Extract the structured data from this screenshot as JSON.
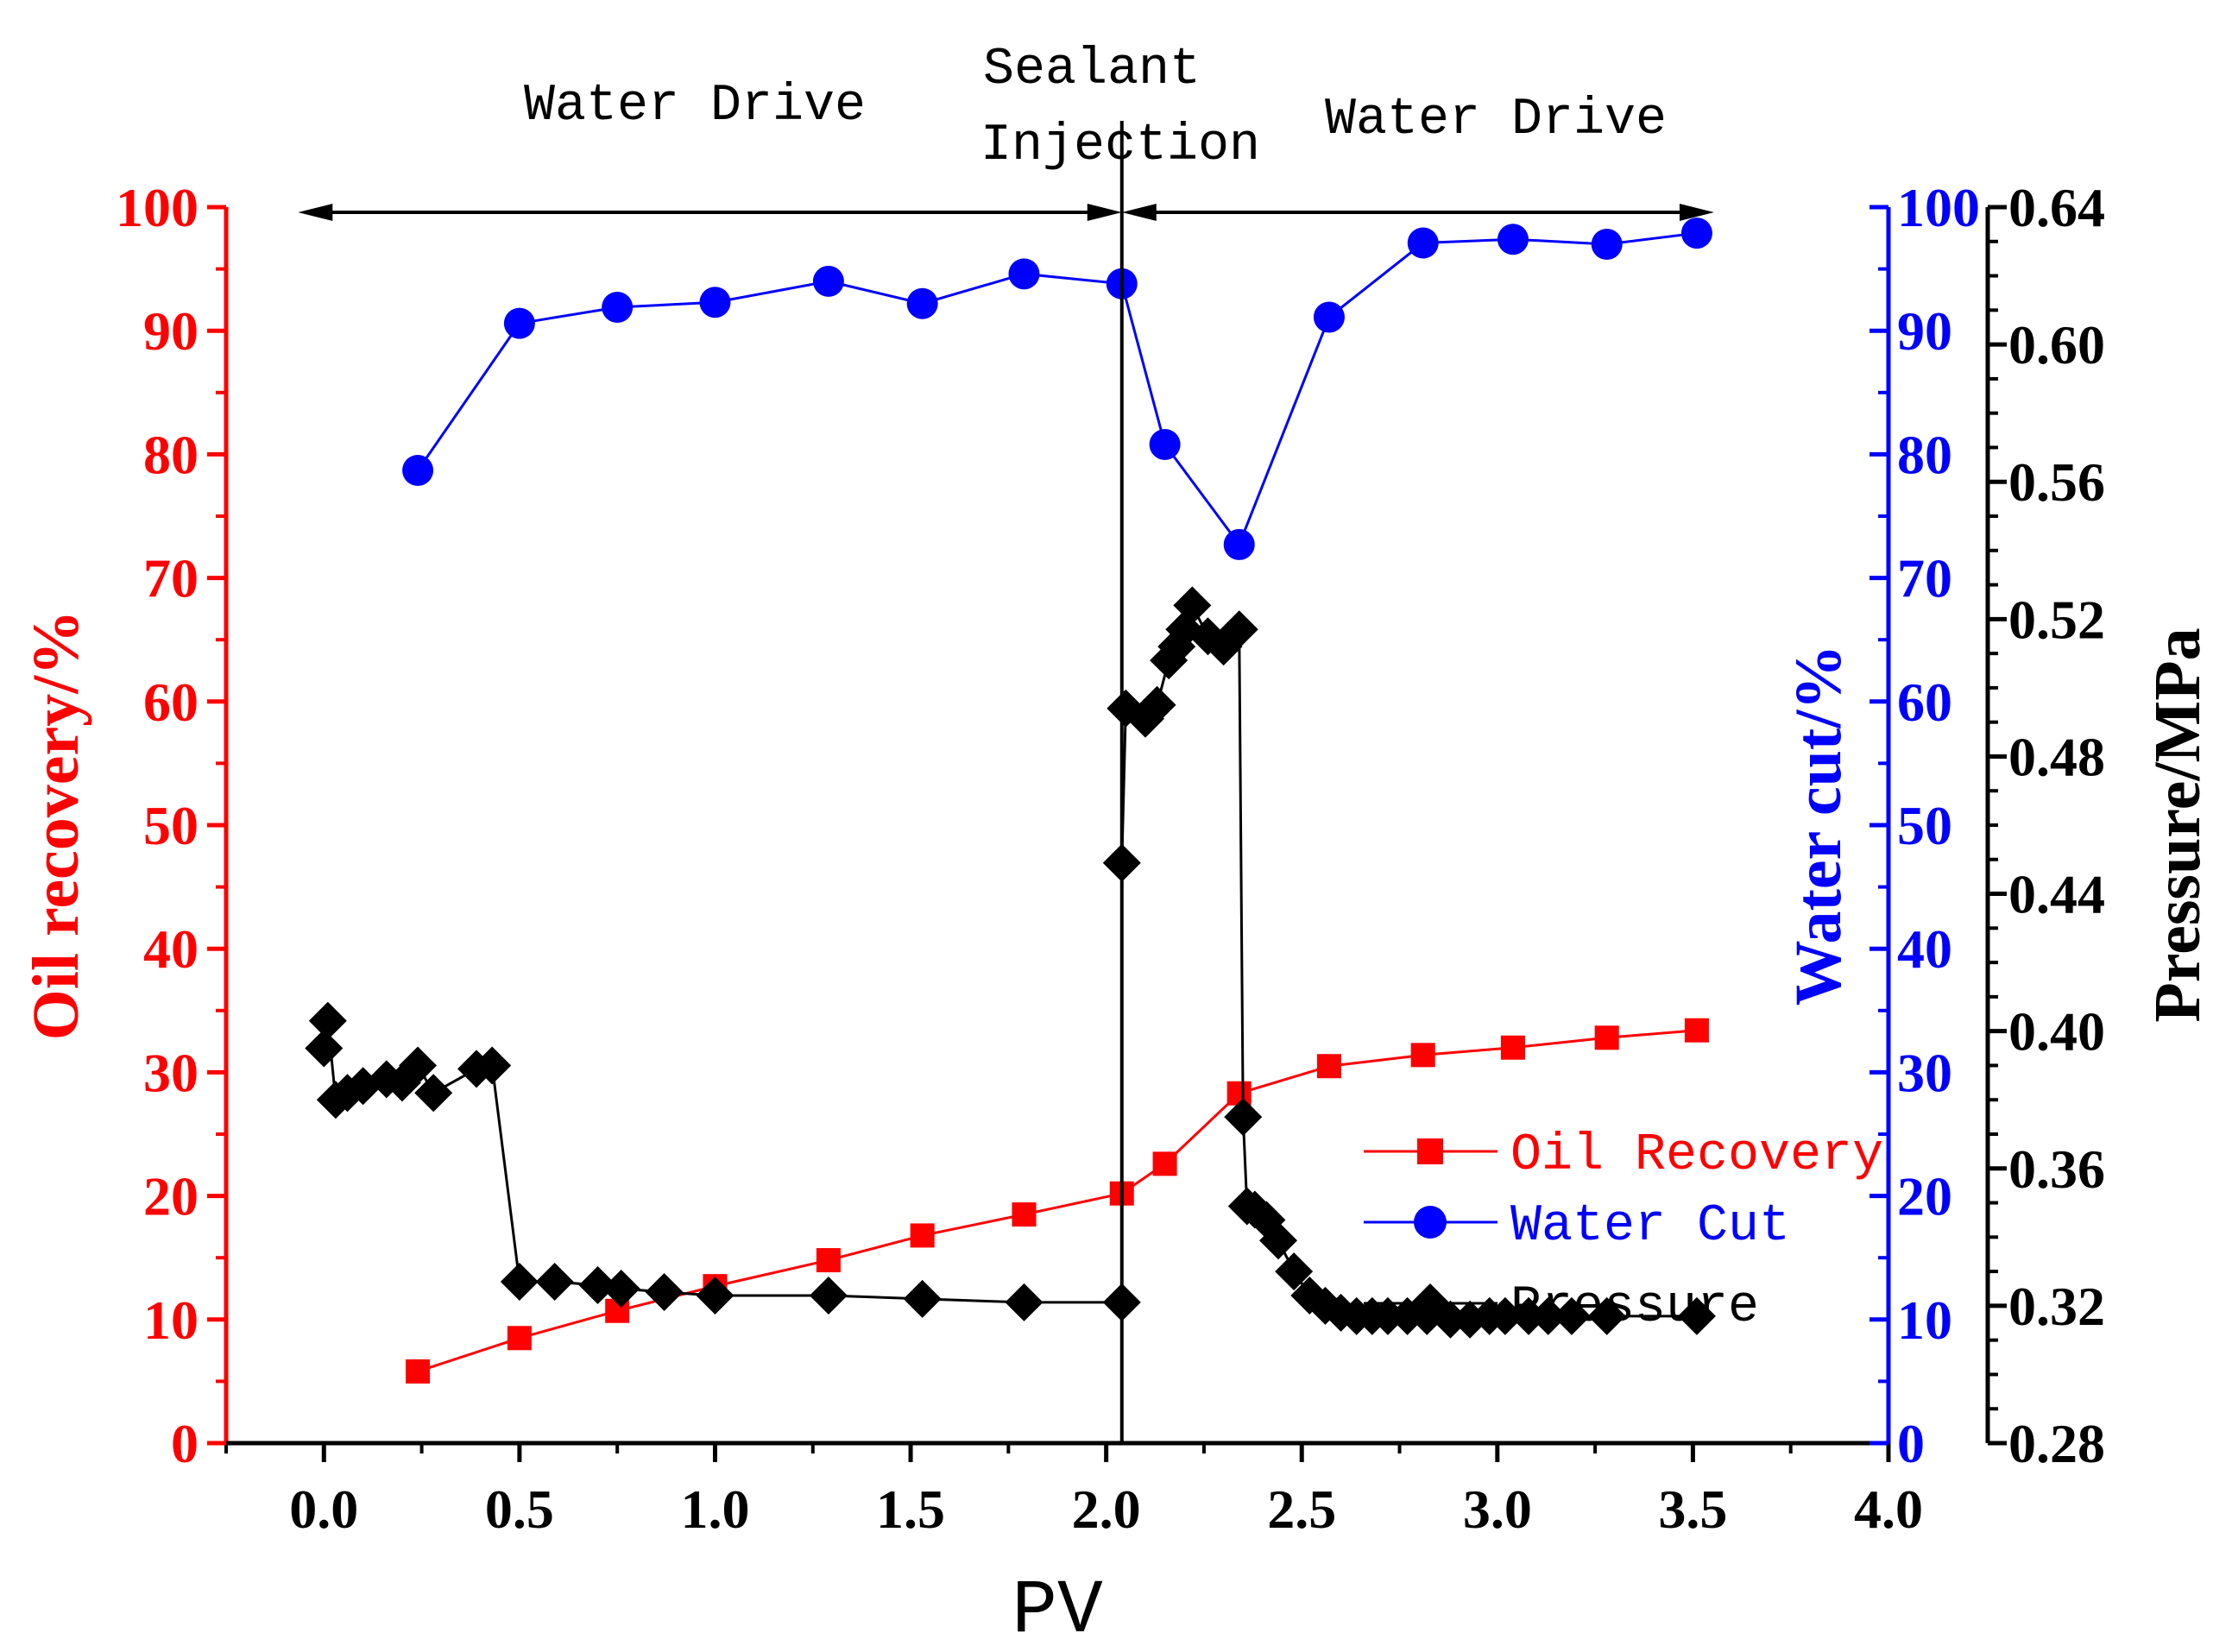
{
  "chart_data": {
    "type": "line",
    "xlabel": "PV",
    "xlim": [
      -0.25,
      4.0
    ],
    "xticks": [
      0.0,
      0.5,
      1.0,
      1.5,
      2.0,
      2.5,
      3.0,
      3.5,
      4.0
    ],
    "xtick_labels": [
      "0.0",
      "0.5",
      "1.0",
      "1.5",
      "2.0",
      "2.5",
      "3.0",
      "3.5",
      "4.0"
    ],
    "axes": {
      "oil": {
        "label": "Oil recovery/%",
        "color": "#ff0000",
        "ylim": [
          0,
          100
        ],
        "ticks": [
          0,
          10,
          20,
          30,
          40,
          50,
          60,
          70,
          80,
          90,
          100
        ],
        "tick_labels": [
          "0",
          "10",
          "20",
          "30",
          "40",
          "50",
          "60",
          "70",
          "80",
          "90",
          "100"
        ]
      },
      "water": {
        "label": "Water cut/%",
        "color": "#0000ff",
        "ylim": [
          0,
          100
        ],
        "ticks": [
          0,
          10,
          20,
          30,
          40,
          50,
          60,
          70,
          80,
          90,
          100
        ],
        "tick_labels": [
          "0",
          "10",
          "20",
          "30",
          "40",
          "50",
          "60",
          "70",
          "80",
          "90",
          "100"
        ]
      },
      "pressure": {
        "label": "Pressure/MPa",
        "color": "#000000",
        "ylim": [
          0.28,
          0.64
        ],
        "ticks": [
          0.28,
          0.32,
          0.36,
          0.4,
          0.44,
          0.48,
          0.52,
          0.56,
          0.6,
          0.64
        ],
        "tick_labels": [
          "0.28",
          "0.32",
          "0.36",
          "0.40",
          "0.44",
          "0.48",
          "0.52",
          "0.56",
          "0.60",
          "0.64"
        ]
      }
    },
    "series": [
      {
        "name": "Oil Recovery",
        "axis": "oil",
        "color": "#ff0000",
        "marker": "square",
        "x": [
          0.24,
          0.5,
          0.75,
          1.0,
          1.29,
          1.53,
          1.79,
          2.04,
          2.15,
          2.34,
          2.57,
          2.81,
          3.04,
          3.28,
          3.51
        ],
        "y": [
          5.8,
          8.5,
          10.7,
          12.7,
          14.8,
          16.8,
          18.5,
          20.2,
          22.6,
          28.3,
          30.5,
          31.4,
          32.0,
          32.8,
          33.4
        ]
      },
      {
        "name": "Water Cut",
        "axis": "water",
        "color": "#0000ff",
        "marker": "circle",
        "x": [
          0.24,
          0.5,
          0.75,
          1.0,
          1.29,
          1.53,
          1.79,
          2.04,
          2.15,
          2.34,
          2.57,
          2.81,
          3.04,
          3.28,
          3.51
        ],
        "y": [
          78.7,
          90.6,
          91.9,
          92.3,
          94.0,
          92.2,
          94.6,
          93.8,
          80.8,
          72.7,
          91.1,
          97.1,
          97.4,
          97.0,
          97.9
        ]
      },
      {
        "name": "Pressure",
        "axis": "pressure",
        "color": "#000000",
        "marker": "diamond",
        "x": [
          0.0,
          0.01,
          0.03,
          0.06,
          0.1,
          0.16,
          0.2,
          0.24,
          0.28,
          0.39,
          0.43,
          0.5,
          0.59,
          0.7,
          0.76,
          0.87,
          1.0,
          1.29,
          1.53,
          1.79,
          2.04,
          2.04,
          2.05,
          2.1,
          2.13,
          2.16,
          2.18,
          2.2,
          2.22,
          2.26,
          2.3,
          2.34,
          2.35,
          2.36,
          2.38,
          2.41,
          2.44,
          2.48,
          2.52,
          2.56,
          2.6,
          2.64,
          2.68,
          2.72,
          2.77,
          2.82,
          2.88,
          2.93,
          2.98,
          3.02,
          3.08,
          3.13,
          3.19,
          3.28,
          3.51
        ],
        "y": [
          0.395,
          0.403,
          0.38,
          0.382,
          0.384,
          0.386,
          0.385,
          0.39,
          0.382,
          0.389,
          0.39,
          0.327,
          0.327,
          0.326,
          0.325,
          0.324,
          0.323,
          0.323,
          0.322,
          0.321,
          0.321,
          0.449,
          0.494,
          0.491,
          0.495,
          0.508,
          0.512,
          0.517,
          0.524,
          0.515,
          0.512,
          0.517,
          0.375,
          0.349,
          0.348,
          0.345,
          0.339,
          0.33,
          0.323,
          0.32,
          0.318,
          0.317,
          0.317,
          0.317,
          0.317,
          0.317,
          0.316,
          0.316,
          0.317,
          0.317,
          0.317,
          0.317,
          0.317,
          0.317,
          0.317
        ]
      }
    ],
    "annotations": [
      {
        "text": "Water Drive",
        "kind": "region"
      },
      {
        "text": "Sealant",
        "kind": "event"
      },
      {
        "text": "Injection",
        "kind": "event"
      },
      {
        "text": "Water Drive",
        "kind": "region"
      }
    ],
    "regions": [
      {
        "from": 0.0,
        "to": 2.04
      },
      {
        "from": 2.04,
        "to": 3.51
      }
    ],
    "event_line_x": 2.04,
    "legend": {
      "placement": "lower-right",
      "entries": [
        "Oil Recovery",
        "Water Cut",
        "Pressure"
      ]
    },
    "grid": false
  }
}
